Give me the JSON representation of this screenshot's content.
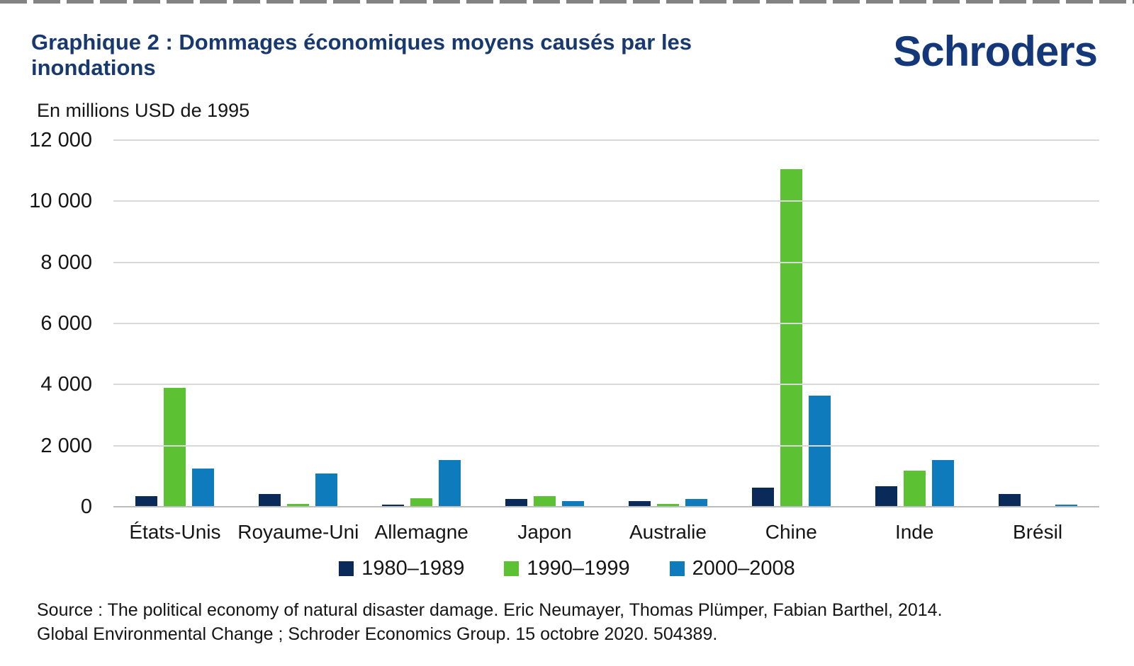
{
  "page": {
    "title": "Graphique 2 : Dommages économiques moyens causés par les inondations",
    "logo_text": "Schroders",
    "unit_label": "En millions USD de 1995",
    "source_line1": "Source : The political economy of natural disaster damage. Eric Neumayer, Thomas Plümper, Fabian Barthel, 2014.",
    "source_line2": "Global Environmental Change ; Schroder Economics Group. 15 octobre 2020. 504389."
  },
  "colors": {
    "brand_navy": "#14377a",
    "title_navy": "#17396f",
    "series_1980s": "#0a2a5a",
    "series_1990s": "#5cc133",
    "series_2000s": "#0e7bbd",
    "gridline": "#d9d9d9",
    "baseline": "#bdbdbd"
  },
  "chart_data": {
    "type": "bar",
    "title": "Graphique 2 : Dommages économiques moyens causés par les inondations",
    "ylabel": "En millions USD de 1995",
    "xlabel": "",
    "categories": [
      "États-Unis",
      "Royaume-Uni",
      "Allemagne",
      "Japon",
      "Australie",
      "Chine",
      "Inde",
      "Brésil"
    ],
    "series": [
      {
        "name": "1980–1989",
        "color": "#0a2a5a",
        "values": [
          350,
          420,
          60,
          250,
          180,
          630,
          680,
          410
        ]
      },
      {
        "name": "1990–1999",
        "color": "#5cc133",
        "values": [
          3900,
          90,
          280,
          340,
          85,
          11050,
          1180,
          0
        ]
      },
      {
        "name": "2000–2008",
        "color": "#0e7bbd",
        "values": [
          1260,
          1080,
          1520,
          180,
          250,
          3630,
          1520,
          80
        ]
      }
    ],
    "ylim": [
      0,
      12000
    ],
    "ytick_step": 2000,
    "ytick_labels_top_to_bottom": [
      "12 000",
      "10 000",
      "8 000",
      "6 000",
      "4 000",
      "2 000",
      "0"
    ],
    "grid": true,
    "legend_position": "bottom-center"
  }
}
